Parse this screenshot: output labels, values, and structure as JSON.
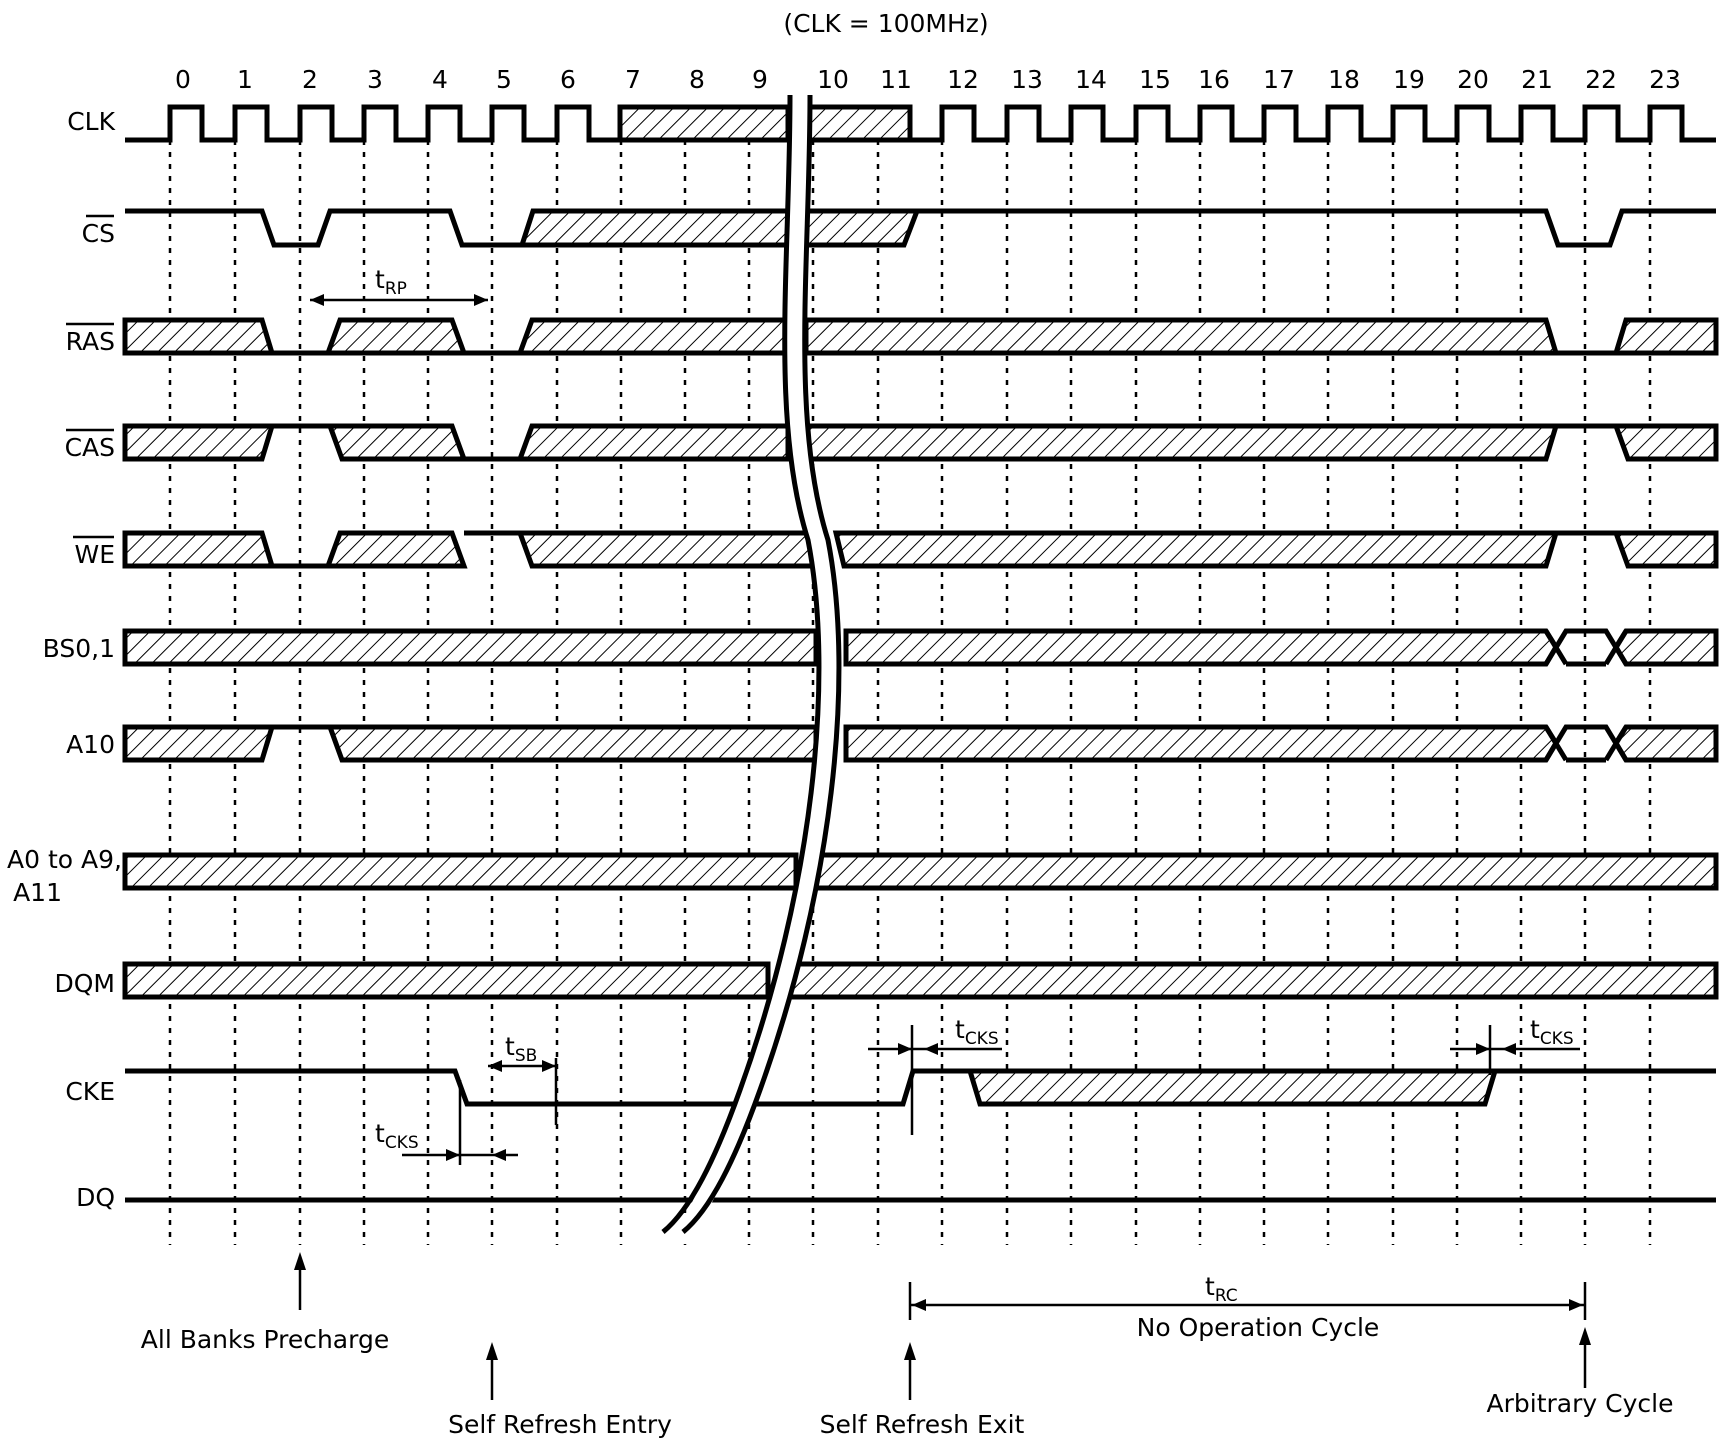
{
  "diagram": {
    "clock_note": "(CLK = 100MHz)",
    "cycles": [
      "0",
      "1",
      "2",
      "3",
      "4",
      "5",
      "6",
      "7",
      "8",
      "9",
      "10",
      "11",
      "12",
      "13",
      "14",
      "15",
      "16",
      "17",
      "18",
      "19",
      "20",
      "21",
      "22",
      "23"
    ],
    "signals": {
      "clk": "CLK",
      "cs": "CS",
      "ras": "RAS",
      "cas": "CAS",
      "we": "WE",
      "bs": "BS0,1",
      "a10": "A10",
      "addr_line1": "A0 to A9,",
      "addr_line2": "A11",
      "dqm": "DQM",
      "cke": "CKE",
      "dq": "DQ"
    },
    "timing": {
      "trp_main": "t",
      "trp_sub": "RP",
      "tsb_main": "t",
      "tsb_sub": "SB",
      "tcks_main": "t",
      "tcks_sub": "CKS",
      "trc_main": "t",
      "trc_sub": "RC"
    },
    "events": {
      "precharge": "All Banks Precharge",
      "sr_entry": "Self Refresh Entry",
      "sr_exit": "Self Refresh Exit",
      "nop": "No Operation Cycle",
      "arbitrary": "Arbitrary Cycle"
    }
  }
}
